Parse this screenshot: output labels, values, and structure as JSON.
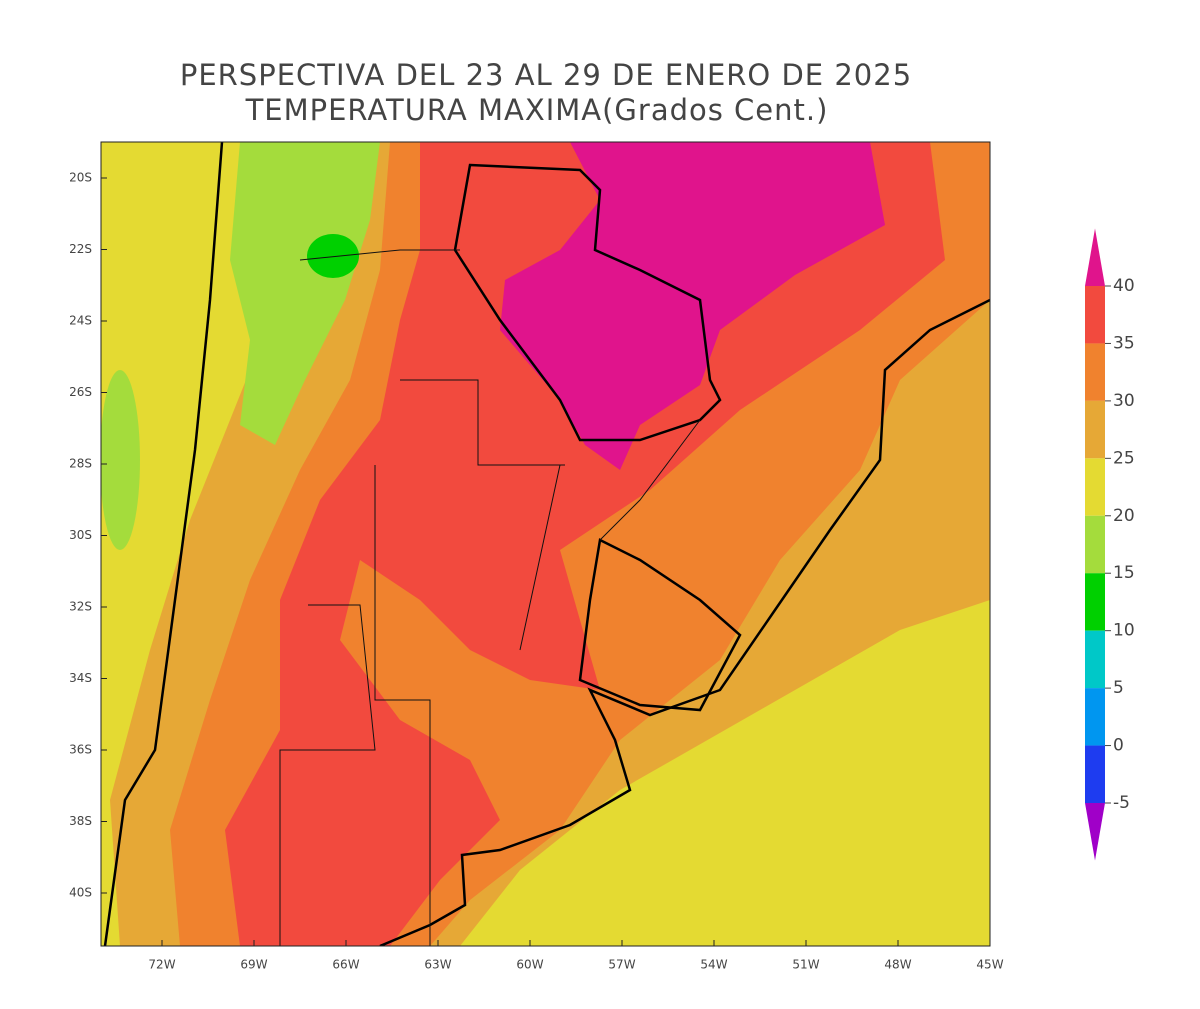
{
  "header": {
    "title": "PERSPECTIVA DEL 23 AL 29 DE ENERO DE 2025",
    "subtitle": "TEMPERATURA MAXIMA(Grados Cent.)"
  },
  "map": {
    "lat_labels": [
      "20S",
      "22S",
      "24S",
      "26S",
      "28S",
      "30S",
      "32S",
      "34S",
      "36S",
      "38S",
      "40S"
    ],
    "lon_labels": [
      "72W",
      "69W",
      "66W",
      "63W",
      "60W",
      "57W",
      "54W",
      "51W",
      "48W",
      "45W"
    ]
  },
  "colorbar": {
    "levels": [
      40,
      35,
      30,
      25,
      20,
      15,
      10,
      5,
      0,
      -5
    ],
    "colors": [
      "#e0148c",
      "#f24a3e",
      "#f0822e",
      "#e6a836",
      "#e4da32",
      "#a4dc3c",
      "#00d000",
      "#00c8c8",
      "#0096f0",
      "#1e3cf0",
      "#a000c8"
    ]
  }
}
